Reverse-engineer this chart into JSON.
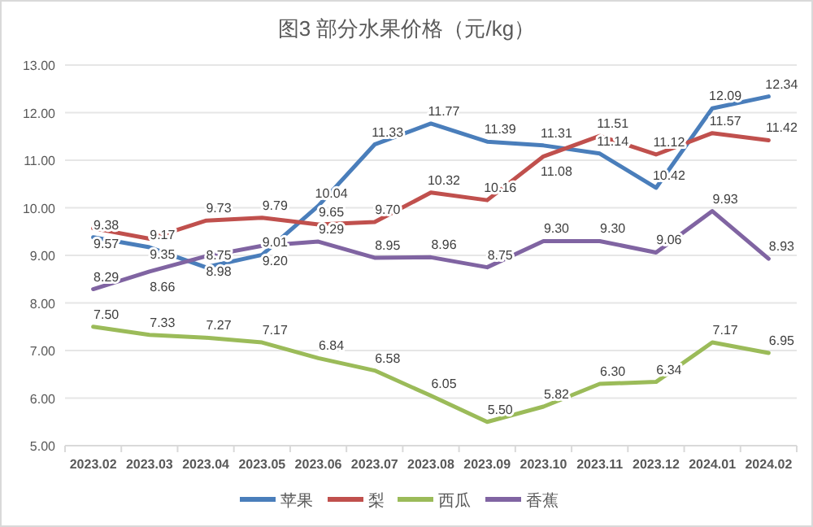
{
  "chart_data": {
    "type": "line",
    "title": "图3 部分水果价格（元/kg）",
    "categories": [
      "2023.02",
      "2023.03",
      "2023.04",
      "2023.05",
      "2023.06",
      "2023.07",
      "2023.08",
      "2023.09",
      "2023.10",
      "2023.11",
      "2023.12",
      "2024.01",
      "2024.02"
    ],
    "series": [
      {
        "name": "苹果",
        "color": "#4a7ebb",
        "values": [
          9.38,
          9.17,
          8.75,
          9.01,
          10.04,
          11.33,
          11.77,
          11.39,
          11.31,
          11.14,
          10.42,
          12.09,
          12.34
        ],
        "value_labels": [
          "9.38",
          "9.17",
          "8.75",
          "9.01",
          "10.04",
          "11.33",
          "11.77",
          "11.39",
          "11.31",
          "11.14",
          "10.42",
          "12.09",
          "12.34"
        ]
      },
      {
        "name": "梨",
        "color": "#c0504d",
        "values": [
          9.57,
          9.35,
          9.73,
          9.79,
          9.65,
          9.7,
          10.32,
          10.16,
          11.08,
          11.51,
          11.12,
          11.57,
          11.42
        ],
        "value_labels": [
          "9.57",
          "9.35",
          "9.73",
          "9.79",
          "9.65",
          "9.70",
          "10.32",
          "10.16",
          "11.08",
          "11.51",
          "11.12",
          "11.57",
          "11.42"
        ]
      },
      {
        "name": "西瓜",
        "color": "#9bbb59",
        "values": [
          7.5,
          7.33,
          7.27,
          7.17,
          6.84,
          6.58,
          6.05,
          5.5,
          5.82,
          6.3,
          6.34,
          7.17,
          6.95
        ],
        "value_labels": [
          "7.50",
          "7.33",
          "7.27",
          "7.17",
          "6.84",
          "6.58",
          "6.05",
          "5.50",
          "5.82",
          "6.30",
          "6.34",
          "7.17",
          "6.95"
        ]
      },
      {
        "name": "香蕉",
        "color": "#8064a2",
        "values": [
          8.29,
          8.66,
          8.98,
          9.2,
          9.29,
          8.95,
          8.96,
          8.75,
          9.3,
          9.3,
          9.06,
          9.93,
          8.93
        ],
        "value_labels": [
          "8.29",
          "8.66",
          "8.98",
          "9.20",
          "9.29",
          "8.95",
          "8.96",
          "8.75",
          "9.30",
          "9.30",
          "9.06",
          "9.93",
          "8.93"
        ]
      }
    ],
    "ylim": [
      5,
      13
    ],
    "yticks": [
      {
        "value": 5,
        "label": "5.00"
      },
      {
        "value": 6,
        "label": "6.00"
      },
      {
        "value": 7,
        "label": "7.00"
      },
      {
        "value": 8,
        "label": "8.00"
      },
      {
        "value": 9,
        "label": "9.00"
      },
      {
        "value": 10,
        "label": "10.00"
      },
      {
        "value": 11,
        "label": "11.00"
      },
      {
        "value": 12,
        "label": "12.00"
      },
      {
        "value": 13,
        "label": "13.00"
      }
    ],
    "grid": "y",
    "legend": "bottom",
    "marker": "none",
    "line_style": "solid"
  }
}
